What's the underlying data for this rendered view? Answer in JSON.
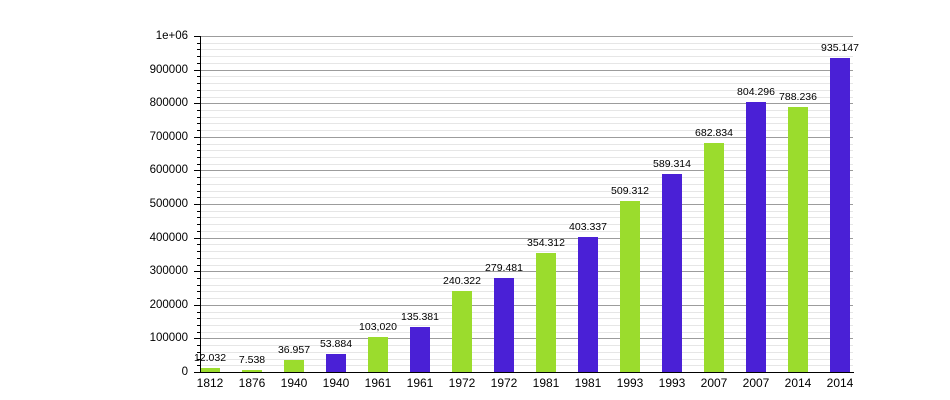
{
  "chart_data": {
    "type": "bar",
    "title": "",
    "xlabel": "",
    "ylabel": "",
    "grid": true,
    "legend_position": "none",
    "ylim": [
      0,
      1000000
    ],
    "y_major_step": 100000,
    "y_minor_step": 20000,
    "y_tick_labels": [
      "0",
      "100000",
      "200000",
      "300000",
      "400000",
      "500000",
      "600000",
      "700000",
      "800000",
      "900000",
      "1e+06"
    ],
    "categories": [
      "1812",
      "1876",
      "1940",
      "1940",
      "1961",
      "1961",
      "1972",
      "1972",
      "1981",
      "1981",
      "1993",
      "1993",
      "2007",
      "2007",
      "2014",
      "2014"
    ],
    "values": [
      12032,
      7538,
      36957,
      53884,
      103020,
      135381,
      240322,
      279481,
      354312,
      403337,
      509312,
      589314,
      682834,
      804296,
      788236,
      935147
    ],
    "value_labels": [
      "12.032",
      "7.538",
      "36.957",
      "53.884",
      "103,020",
      "135.381",
      "240.322",
      "279.481",
      "354.312",
      "403.337",
      "509.312",
      "589.314",
      "682.834",
      "804.296",
      "788.236",
      "935.147"
    ],
    "bar_colors_sequence": [
      "green",
      "green",
      "green",
      "blue",
      "green",
      "blue",
      "green",
      "blue",
      "green",
      "blue",
      "green",
      "blue",
      "green",
      "blue",
      "green",
      "blue"
    ],
    "colors": {
      "green": "#9bdc2d",
      "blue": "#4a20d6",
      "grid_major": "#9c9c9c",
      "grid_minor": "#e6e6e6",
      "axis": "#000000",
      "background": "#ffffff",
      "text": "#000000"
    }
  }
}
